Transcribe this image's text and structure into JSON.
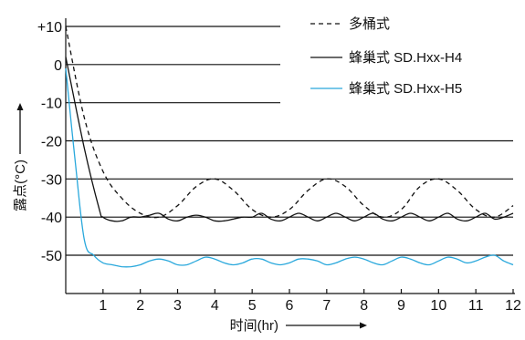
{
  "chart_data": {
    "type": "line",
    "title": "",
    "xlabel": "时间(hr)",
    "ylabel": "露点(°C)",
    "xlim": [
      0,
      12
    ],
    "ylim": [
      -60,
      10
    ],
    "x_ticks": [
      "1",
      "2",
      "3",
      "4",
      "5",
      "6",
      "7",
      "8",
      "9",
      "10",
      "11",
      "12"
    ],
    "y_ticks": [
      "+10",
      "0",
      "-10",
      "-20",
      "-30",
      "-40",
      "-50"
    ],
    "y_tick_values": [
      10,
      0,
      -10,
      -20,
      -30,
      -40,
      -50
    ],
    "grid": "horizontal",
    "legend_position": "top-right",
    "series": [
      {
        "name": "多桶式",
        "style": "dashed",
        "color": "#111111",
        "x": [
          0,
          0.5,
          1,
          1.5,
          2,
          2.5,
          3,
          3.5,
          4,
          4.5,
          5,
          5.5,
          6,
          6.5,
          7,
          7.5,
          8,
          8.5,
          9,
          9.5,
          10,
          10.5,
          11,
          11.5,
          12
        ],
        "y": [
          10,
          -14,
          -28,
          -35,
          -39,
          -40,
          -37,
          -32,
          -30,
          -33,
          -38,
          -40,
          -38,
          -33,
          -30,
          -32,
          -37,
          -40,
          -38,
          -32,
          -30,
          -33,
          -38,
          -40,
          -37
        ]
      },
      {
        "name": "蜂巢式 SD.Hxx-H4",
        "style": "solid",
        "color": "#111111",
        "x": [
          0,
          0.5,
          0.9,
          1,
          1.25,
          1.5,
          1.75,
          2,
          2.25,
          2.5,
          2.75,
          3,
          3.25,
          3.5,
          3.75,
          4,
          4.25,
          4.5,
          4.75,
          5,
          5.25,
          5.5,
          5.75,
          6,
          6.25,
          6.5,
          6.75,
          7,
          7.25,
          7.5,
          7.75,
          8,
          8.25,
          8.5,
          8.75,
          9,
          9.25,
          9.5,
          9.75,
          10,
          10.25,
          10.5,
          10.75,
          11,
          11.25,
          11.5,
          11.75,
          12
        ],
        "y": [
          2,
          -22,
          -38,
          -40,
          -41,
          -41,
          -40,
          -40,
          -39.5,
          -39,
          -40.5,
          -41,
          -40,
          -39.5,
          -40,
          -41,
          -41,
          -40.5,
          -40,
          -40,
          -39,
          -40.5,
          -41,
          -40,
          -39,
          -40,
          -41,
          -40,
          -39,
          -40,
          -41,
          -40,
          -39,
          -40.5,
          -41,
          -40,
          -39,
          -40,
          -41,
          -40,
          -39,
          -40.5,
          -41,
          -40,
          -39,
          -40.5,
          -40,
          -39
        ]
      },
      {
        "name": "蜂巢式 SD.Hxx-H5",
        "style": "solid",
        "color": "#29a8dc",
        "x": [
          0,
          0.25,
          0.5,
          0.75,
          1,
          1.25,
          1.5,
          1.75,
          2,
          2.25,
          2.5,
          2.75,
          3,
          3.25,
          3.5,
          3.75,
          4,
          4.25,
          4.5,
          4.75,
          5,
          5.25,
          5.5,
          5.75,
          6,
          6.25,
          6.5,
          6.75,
          7,
          7.25,
          7.5,
          7.75,
          8,
          8.25,
          8.5,
          8.75,
          9,
          9.25,
          9.5,
          9.75,
          10,
          10.25,
          10.5,
          10.75,
          11,
          11.25,
          11.5,
          11.75,
          12
        ],
        "y": [
          -1,
          -25,
          -46,
          -50,
          -52,
          -52.5,
          -53,
          -53,
          -52.5,
          -51.5,
          -51,
          -51.5,
          -52.5,
          -52.5,
          -51.5,
          -50.5,
          -51,
          -52,
          -52.5,
          -52,
          -51,
          -51,
          -52,
          -52.5,
          -52,
          -51,
          -51,
          -51.5,
          -52.5,
          -52,
          -51,
          -50.5,
          -51,
          -52,
          -52.5,
          -51.5,
          -50.5,
          -51,
          -52,
          -52.5,
          -51.5,
          -50.5,
          -51,
          -52,
          -51.5,
          -50.5,
          -50,
          -51.5,
          -52.5
        ]
      }
    ]
  }
}
